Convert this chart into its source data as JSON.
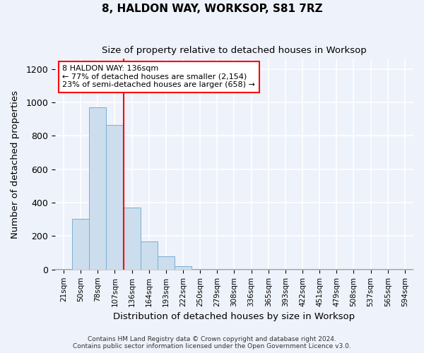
{
  "title1": "8, HALDON WAY, WORKSOP, S81 7RZ",
  "title2": "Size of property relative to detached houses in Worksop",
  "xlabel": "Distribution of detached houses by size in Worksop",
  "ylabel": "Number of detached properties",
  "bins": [
    "21sqm",
    "50sqm",
    "78sqm",
    "107sqm",
    "136sqm",
    "164sqm",
    "193sqm",
    "222sqm",
    "250sqm",
    "279sqm",
    "308sqm",
    "336sqm",
    "365sqm",
    "393sqm",
    "422sqm",
    "451sqm",
    "479sqm",
    "508sqm",
    "537sqm",
    "565sqm",
    "594sqm"
  ],
  "values": [
    5,
    305,
    970,
    865,
    370,
    170,
    80,
    20,
    2,
    2,
    2,
    2,
    2,
    2,
    2,
    2,
    2,
    2,
    2,
    2,
    2
  ],
  "bar_color": "#ccdded",
  "bar_edge_color": "#7ab0d0",
  "red_line_bin_index": 4,
  "annotation_line1": "8 HALDON WAY: 136sqm",
  "annotation_line2": "← 77% of detached houses are smaller (2,154)",
  "annotation_line3": "23% of semi-detached houses are larger (658) →",
  "annotation_box_color": "white",
  "annotation_box_edge_color": "red",
  "ylim": [
    0,
    1260
  ],
  "yticks": [
    0,
    200,
    400,
    600,
    800,
    1000,
    1200
  ],
  "background_color": "#eef2fa",
  "grid_color": "white",
  "footer1": "Contains HM Land Registry data © Crown copyright and database right 2024.",
  "footer2": "Contains public sector information licensed under the Open Government Licence v3.0."
}
